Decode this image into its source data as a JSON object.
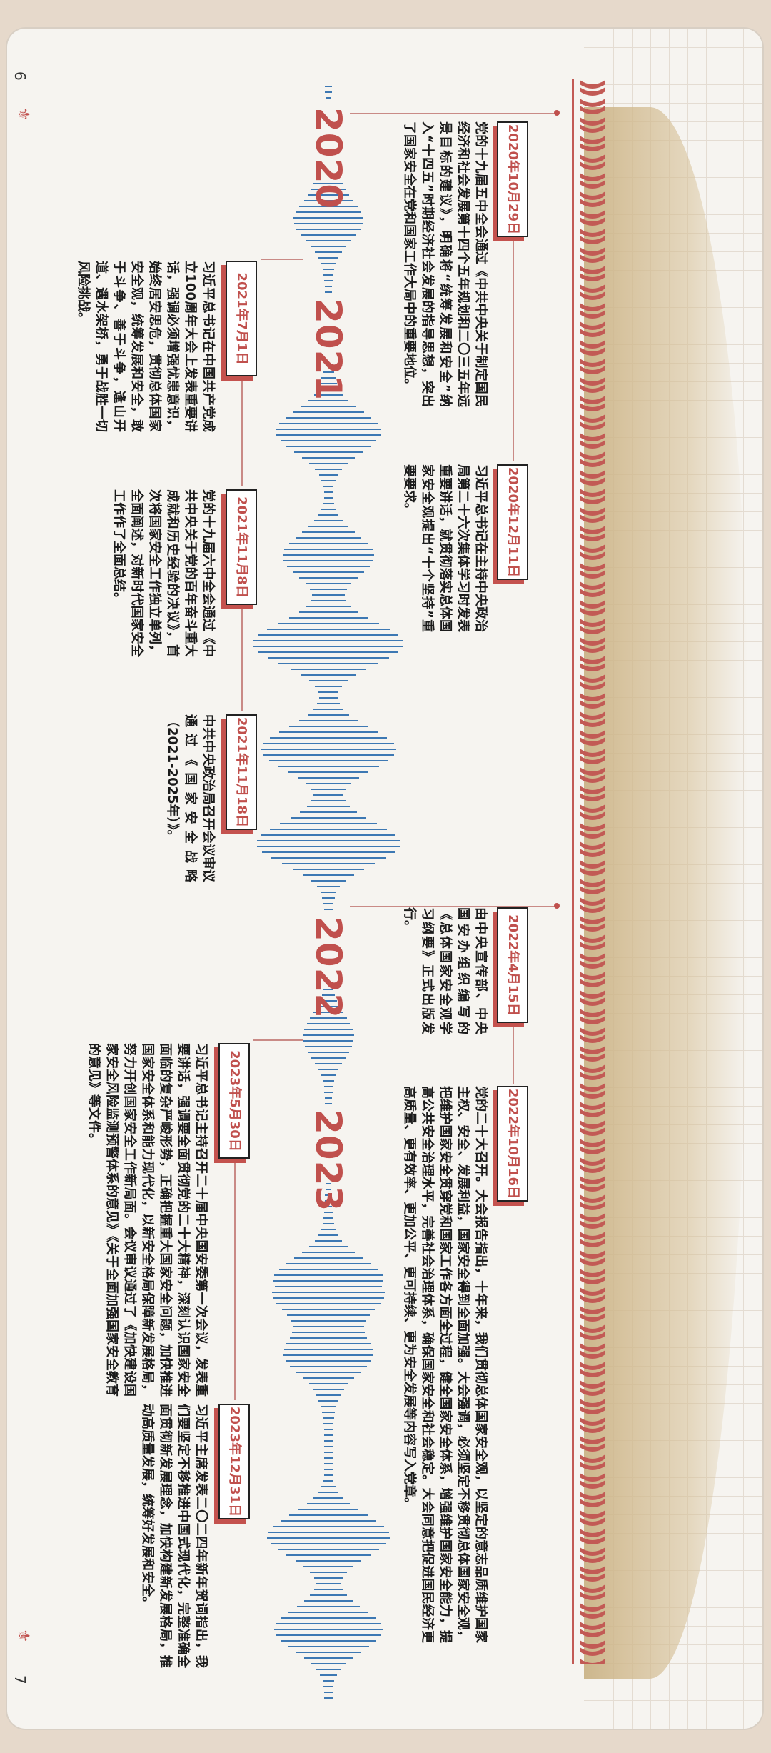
{
  "colors": {
    "accent": "#c0504d",
    "wave": "#3d78b3",
    "paper": "#f6f4f0"
  },
  "page_numbers": {
    "left": "6",
    "right": "7"
  },
  "icons": {
    "corner": "fleur-icon"
  },
  "years": [
    "2020",
    "2021",
    "2022",
    "2023"
  ],
  "events": [
    {
      "date": "2020年10月29日",
      "text": "党的十九届五中全会通过《中共中央关于制定国民经济和社会发展第十四个五年规划和二〇三五年远景目标的建议》，明确将“统筹发展和安全”纳入“十四五”时期经济社会发展的指导思想，突出了国家安全在党和国家工作大局中的重要地位。"
    },
    {
      "date": "2020年12月11日",
      "text": "习近平总书记在主持中央政治局第二十六次集体学习时发表重要讲话，就贯彻落实总体国家安全观提出“十个坚持”重要要求。"
    },
    {
      "date": "2021年7月1日",
      "text": "习近平总书记在中国共产党成立100周年大会上发表重要讲话，强调必须增强忧患意识，始终居安思危，贯彻总体国家安全观，统筹发展和安全，敢于斗争、善于斗争，逢山开道、遇水架桥，勇于战胜一切风险挑战。"
    },
    {
      "date": "2021年11月8日",
      "text": "党的十九届六中全会通过《中共中央关于党的百年奋斗重大成就和历史经验的决议》，首次将国家安全工作独立单列，全面阐述，对新时代国家安全工作作了全面总结。"
    },
    {
      "date": "2021年11月18日",
      "text": "中共中央政治局召开会议审议通过《国家安全战略（2021-2025年）》。"
    },
    {
      "date": "2022年4月15日",
      "text": "由中央宣传部、中央国安办组织编写的《总体国家安全观学习纲要》正式出版发行。"
    },
    {
      "date": "2022年10月16日",
      "text": "党的二十大召开。大会报告指出，十年来，我们贯彻总体国家安全观，以坚定的意志品质维护国家主权、安全、发展利益，国家安全得到全面加强。大会强调，必须坚定不移贯彻总体国家安全观，把维护国家安全贯穿党和国家工作各方面全过程，健全国家安全体系，增强维护国家安全能力，提高公共安全治理水平，完善社会治理体系，确保国家安全和社会稳定。大会同意把促进国民经济更高质量、更有效率、更加公平、更可持续、更为安全发展等内容写入党章。"
    },
    {
      "date": "2023年5月30日",
      "text": "习近平总书记主持召开二十届中央国安委第一次会议，发表重要讲话，强调要全面贯彻党的二十大精神，深刻认识国家安全面临的复杂严峻形势，正确把握重大国家安全问题，加快推进国家安全体系和能力现代化，以新安全格局保障新发展格局，努力开创国家安全工作新局面。会议审议通过了《加快建设国家安全风险监测预警体系的意见》《关于全面加强国家安全教育的意见》等文件。"
    },
    {
      "date": "2023年12月31日",
      "text": "习近平主席发表二〇二四年新年贺词指出，我们要坚定不移推进中国式现代化，完整准确全面贯彻新发展理念，加快构建新发展格局，推动高质量发展，统筹好发展和安全。"
    }
  ]
}
